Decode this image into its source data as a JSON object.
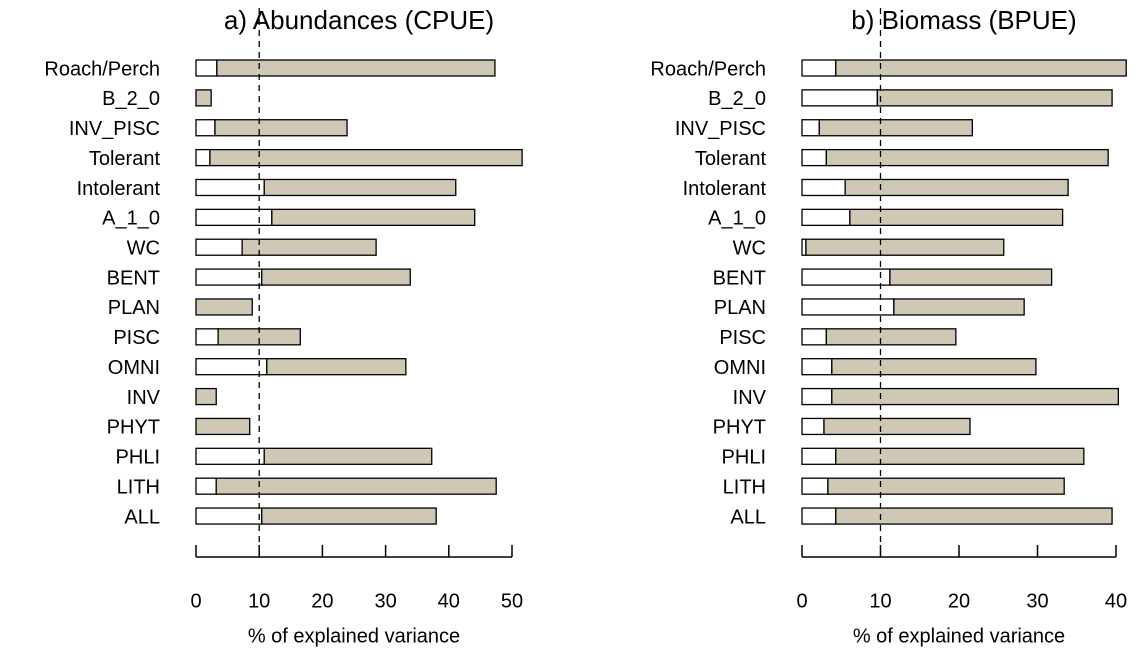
{
  "chart_data": [
    {
      "type": "stacked-barh",
      "title": "a) Abundances (CPUE)",
      "xlabel": "% of explained variance",
      "categories": [
        "Roach/Perch",
        "B_2_0",
        "INV_PISC",
        "Tolerant",
        "Intolerant",
        "A_1_0",
        "WC",
        "BENT",
        "PLAN",
        "PISC",
        "OMNI",
        "INV",
        "PHYT",
        "PHLI",
        "LITH",
        "ALL"
      ],
      "series": [
        {
          "color": "#ffffff",
          "values": [
            3.3,
            0,
            3.0,
            2.2,
            10.8,
            12.0,
            7.3,
            10.4,
            0,
            3.5,
            11.2,
            0,
            0,
            10.8,
            3.2,
            10.4
          ]
        },
        {
          "color": "#cfc8b4",
          "values": [
            44.0,
            2.4,
            20.9,
            49.4,
            30.3,
            32.1,
            21.2,
            23.5,
            8.9,
            13.0,
            22.0,
            3.2,
            8.5,
            26.5,
            44.3,
            27.6
          ]
        }
      ],
      "xlim": [
        0,
        50
      ],
      "xticks": [
        0,
        10,
        20,
        30,
        40,
        50
      ],
      "vline": 10
    },
    {
      "type": "stacked-barh",
      "title": "b) Biomass (BPUE)",
      "xlabel": "% of explained variance",
      "categories": [
        "Roach/Perch",
        "B_2_0",
        "INV_PISC",
        "Tolerant",
        "Intolerant",
        "A_1_0",
        "WC",
        "BENT",
        "PLAN",
        "PISC",
        "OMNI",
        "INV",
        "PHYT",
        "PHLI",
        "LITH",
        "ALL"
      ],
      "series": [
        {
          "color": "#ffffff",
          "values": [
            4.3,
            9.6,
            2.2,
            3.1,
            5.5,
            6.1,
            0.5,
            11.2,
            11.7,
            3.1,
            3.8,
            3.8,
            2.8,
            4.3,
            3.3,
            4.3
          ]
        },
        {
          "color": "#cfc8b4",
          "values": [
            37.0,
            29.9,
            19.5,
            35.9,
            28.4,
            27.1,
            25.2,
            20.6,
            16.6,
            16.5,
            26.0,
            36.5,
            18.6,
            31.6,
            30.1,
            35.2
          ]
        }
      ],
      "xlim": [
        0,
        40
      ],
      "xticks": [
        0,
        10,
        20,
        30,
        40
      ],
      "vline": 10
    }
  ]
}
